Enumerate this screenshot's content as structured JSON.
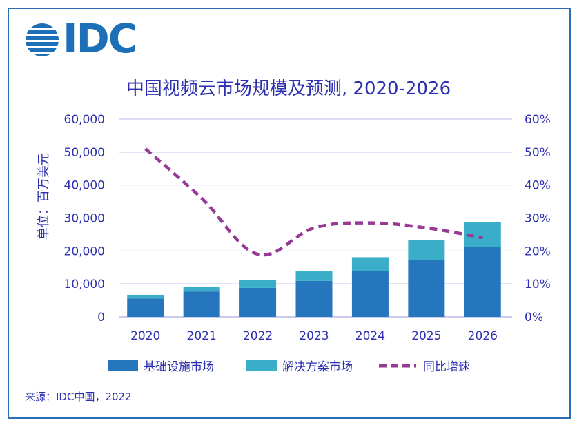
{
  "brand": {
    "name": "IDC",
    "color": "#1d6fb7"
  },
  "source": "来源：IDC中国，2022",
  "colors": {
    "base": "#2576bd",
    "solution": "#3aadc9",
    "growth": "#963a95",
    "text": "#2c2fb0",
    "grid": "#b8b9ea"
  },
  "chart_data": {
    "type": "bar",
    "stacked": true,
    "title": "中国视频云市场规模及预测, 2020-2026",
    "ylabel": "单位：百万美元",
    "y2label": "",
    "categories": [
      "2020",
      "2021",
      "2022",
      "2023",
      "2024",
      "2025",
      "2026"
    ],
    "ylim": [
      0,
      60000
    ],
    "y2lim": [
      0,
      60
    ],
    "yticks": [
      "0",
      "10,000",
      "20,000",
      "30,000",
      "40,000",
      "50,000",
      "60,000"
    ],
    "y2ticks": [
      "0%",
      "10%",
      "20%",
      "30%",
      "40%",
      "50%",
      "60%"
    ],
    "series": [
      {
        "name": "基础设施市场",
        "type": "bar",
        "values": [
          5600,
          7700,
          8800,
          10900,
          13800,
          17300,
          21300
        ]
      },
      {
        "name": "解决方案市场",
        "type": "bar",
        "values": [
          1100,
          1500,
          2300,
          3100,
          4300,
          5900,
          7400
        ]
      },
      {
        "name": "同比增速",
        "type": "line",
        "axis": "right",
        "values": [
          51,
          36,
          19,
          27,
          28.5,
          27,
          24
        ]
      }
    ],
    "grid": true,
    "legend": "bottom"
  }
}
